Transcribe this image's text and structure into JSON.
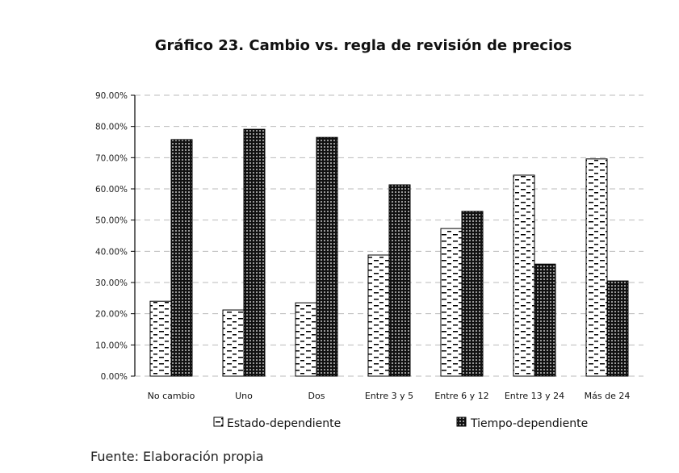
{
  "chart_data": {
    "type": "bar",
    "title": "Gráfico 23. Cambio vs. regla de revisión de precios",
    "xlabel": "",
    "ylabel": "",
    "ylim": [
      0,
      90
    ],
    "yticks": [
      "0.00%",
      "10.00%",
      "20.00%",
      "30.00%",
      "40.00%",
      "50.00%",
      "60.00%",
      "70.00%",
      "80.00%",
      "90.00%"
    ],
    "ytick_values": [
      0,
      10,
      20,
      30,
      40,
      50,
      60,
      70,
      80,
      90
    ],
    "grid": true,
    "legend_position": "bottom",
    "categories": [
      "No cambio",
      "Uno",
      "Dos",
      "Entre 3 y 5",
      "Entre 6 y 12",
      "Entre 13 y 24",
      "Más de 24"
    ],
    "series": [
      {
        "name": "Estado-dependiente",
        "pattern": "dashes",
        "values": [
          24.0,
          21.2,
          23.5,
          38.8,
          47.3,
          64.4,
          69.6
        ]
      },
      {
        "name": "Tiempo-dependiente",
        "pattern": "dense-dots",
        "values": [
          75.8,
          79.1,
          76.5,
          61.3,
          52.8,
          35.9,
          30.5
        ]
      }
    ],
    "source": "Fuente: Elaboración propia"
  },
  "colors": {
    "grid": "#bbbbbb",
    "axis": "#000000",
    "bar_stroke": "#000000"
  }
}
